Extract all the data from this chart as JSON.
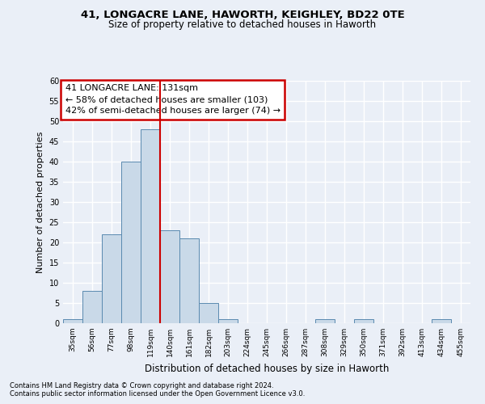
{
  "title1": "41, LONGACRE LANE, HAWORTH, KEIGHLEY, BD22 0TE",
  "title2": "Size of property relative to detached houses in Haworth",
  "xlabel": "Distribution of detached houses by size in Haworth",
  "ylabel": "Number of detached properties",
  "bin_labels": [
    "35sqm",
    "56sqm",
    "77sqm",
    "98sqm",
    "119sqm",
    "140sqm",
    "161sqm",
    "182sqm",
    "203sqm",
    "224sqm",
    "245sqm",
    "266sqm",
    "287sqm",
    "308sqm",
    "329sqm",
    "350sqm",
    "371sqm",
    "392sqm",
    "413sqm",
    "434sqm",
    "455sqm"
  ],
  "bar_values": [
    1,
    8,
    22,
    40,
    48,
    23,
    21,
    5,
    1,
    0,
    0,
    0,
    0,
    1,
    0,
    1,
    0,
    0,
    0,
    1,
    0
  ],
  "bar_color": "#c9d9e8",
  "bar_edge_color": "#5a8ab0",
  "ylim": [
    0,
    60
  ],
  "yticks": [
    0,
    5,
    10,
    15,
    20,
    25,
    30,
    35,
    40,
    45,
    50,
    55,
    60
  ],
  "vline_x": 4.5,
  "vline_color": "#cc0000",
  "annotation_text": "41 LONGACRE LANE: 131sqm\n← 58% of detached houses are smaller (103)\n42% of semi-detached houses are larger (74) →",
  "annotation_box_color": "#ffffff",
  "annotation_box_edge": "#cc0000",
  "footer1": "Contains HM Land Registry data © Crown copyright and database right 2024.",
  "footer2": "Contains public sector information licensed under the Open Government Licence v3.0.",
  "bg_color": "#eaeff7",
  "plot_bg_color": "#eaeff7",
  "grid_color": "#ffffff",
  "title1_fontsize": 9.5,
  "title2_fontsize": 8.5,
  "ylabel_fontsize": 8,
  "xlabel_fontsize": 8.5,
  "tick_fontsize": 7,
  "xtick_fontsize": 6.5,
  "footer_fontsize": 6,
  "annotation_fontsize": 8
}
